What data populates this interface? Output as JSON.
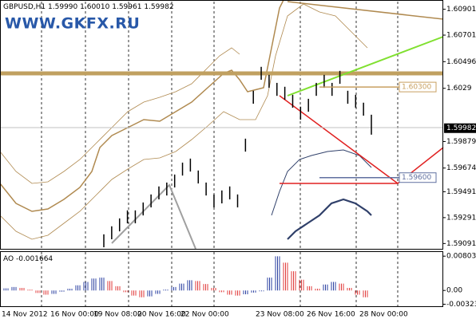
{
  "chart_data": {
    "type": "hl",
    "symbol": "GBPUSD,H1",
    "ohlc_text": [
      "1.59990",
      "1.60010",
      "1.59961",
      "1.59982"
    ],
    "watermark": "WWW.GKFX.RU",
    "color": "#000000",
    "highs": [
      1.59162,
      1.59224,
      1.59285,
      1.59347,
      1.59347,
      1.59408,
      1.5947,
      1.59532,
      1.59562,
      1.59624,
      1.59716,
      1.59747,
      1.59655,
      1.59562,
      1.5947,
      1.59501,
      1.59532,
      1.5947,
      1.59901,
      1.60271,
      1.60456,
      1.60394,
      1.60332,
      1.60302,
      1.6024,
      1.60148,
      1.60209,
      1.60332,
      1.60394,
      1.60332,
      1.60425,
      1.60271,
      1.6024,
      1.60179,
      1.60086
    ],
    "lows": [
      1.59062,
      1.59124,
      1.59185,
      1.59247,
      1.59247,
      1.59308,
      1.5937,
      1.59432,
      1.59462,
      1.59524,
      1.59616,
      1.59647,
      1.59555,
      1.59462,
      1.5937,
      1.59401,
      1.59432,
      1.5937,
      1.59801,
      1.60171,
      1.60356,
      1.60294,
      1.60232,
      1.60202,
      1.6014,
      1.60048,
      1.60109,
      1.60232,
      1.60294,
      1.60232,
      1.60325,
      1.60171,
      1.6014,
      1.60079,
      1.59932
    ],
    "last_price": 1.59982,
    "levels": [
      {
        "value": 1.603,
        "label": "1.60300",
        "color": "#c8a060"
      },
      {
        "value": 1.596,
        "label": "1.59600",
        "color": "#6070a0"
      }
    ],
    "ylim": [
      1.5905,
      1.6096
    ],
    "yticks": [
      1.60901,
      1.60701,
      1.60496,
      1.6029,
      1.59879,
      1.59674,
      1.59491,
      1.59291,
      1.59091
    ],
    "categories": [
      "14 Nov 2012",
      "16 Nov 00:00",
      "19 Nov 08:00",
      "20 Nov 16:00",
      "22 Nov 00:00",
      "23 Nov 08:00",
      "26 Nov 16:00",
      "28 Nov 00:00"
    ],
    "grid": true,
    "oscillator": {
      "type": "histogram",
      "name": "AO",
      "value": -0.001664,
      "up_color": "#2a3fa0",
      "down_color": "#e03a3a",
      "values": [
        0.0005,
        0.0008,
        0.0006,
        0.0002,
        -0.0006,
        -0.001,
        -0.0008,
        -0.0003,
        0.0004,
        0.0012,
        0.002,
        0.0028,
        0.003,
        0.0022,
        0.001,
        -0.0004,
        -0.0012,
        -0.0016,
        -0.0014,
        -0.0008,
        0.0002,
        0.0008,
        0.0016,
        0.0024,
        0.0022,
        0.0015,
        0.0006,
        -0.0004,
        -0.001,
        -0.0012,
        -0.0009,
        -0.0005,
        -0.0002,
        0.003,
        0.008,
        0.0065,
        0.0045,
        0.0025,
        0.001,
        0.0004,
        0.0014,
        0.002,
        0.0016,
        0.0006,
        -0.001,
        -0.0016
      ],
      "ylim": [
        -0.0037,
        0.009
      ],
      "yticks": [
        0.00803,
        {
          "value": 0,
          "label": "0.00"
        },
        -0.00323
      ]
    }
  }
}
